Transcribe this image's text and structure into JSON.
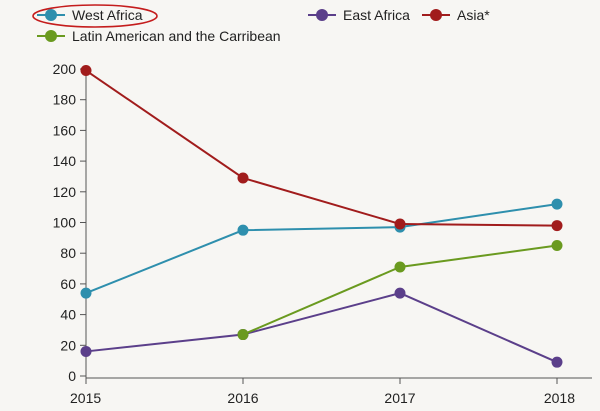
{
  "chart_data": {
    "type": "line",
    "x": [
      2015,
      2016,
      2017,
      2018
    ],
    "x_tick_labels": [
      "2015",
      "2016",
      "2017",
      "2018"
    ],
    "ylim": [
      0,
      200
    ],
    "y_ticks": [
      0,
      20,
      40,
      60,
      80,
      100,
      120,
      140,
      160,
      180,
      200
    ],
    "grid": false,
    "legend_placement": "top-left",
    "series": [
      {
        "name": "West Africa",
        "color": "#2e8fad",
        "values": [
          54,
          95,
          97,
          112
        ],
        "highlighted": true
      },
      {
        "name": "East Africa",
        "color": "#5b3f8a",
        "values": [
          16,
          27,
          54,
          9
        ]
      },
      {
        "name": "Asia*",
        "color": "#a11c1c",
        "values": [
          199,
          129,
          99,
          98
        ]
      },
      {
        "name": "Latin American and the Carribean",
        "color": "#6a9a1f",
        "values": [
          null,
          27,
          71,
          85
        ]
      }
    ],
    "highlight_color": "#c41c1c"
  }
}
